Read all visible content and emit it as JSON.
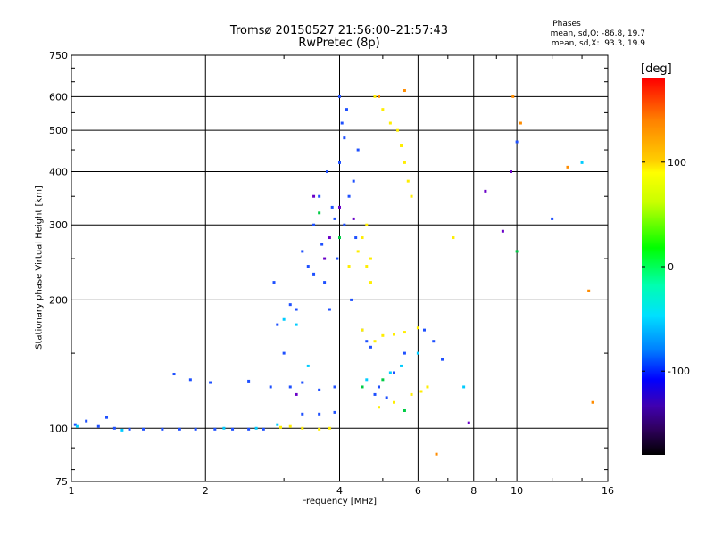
{
  "header": {
    "title_line1": "Tromsø 20150527 21:56:00–21:57:43",
    "title_line2": "RwPretec (8p)"
  },
  "phases": {
    "heading": "Phases",
    "o_line": "mean, sd,O: -86.8, 19.7",
    "x_line": "mean, sd,X:  93.3, 19.9"
  },
  "colorbar": {
    "title": "[deg]",
    "ticks": [
      {
        "label": "100",
        "value": 100
      },
      {
        "label": "0",
        "value": 0
      },
      {
        "label": "-100",
        "value": -100
      }
    ],
    "range": [
      -180,
      180
    ]
  },
  "chart_data": {
    "type": "scatter",
    "title": "Tromsø 20150527 21:56:00–21:57:43",
    "subtitle": "RwPretec (8p)",
    "xlabel": "Frequency [MHz]",
    "ylabel": "Stationary phase Virtual Height [km]",
    "x_scale": "log",
    "y_scale": "log",
    "xlim": [
      1,
      16
    ],
    "ylim": [
      75,
      750
    ],
    "x_ticks": [
      1,
      2,
      4,
      6,
      8,
      10,
      16
    ],
    "y_ticks": [
      75,
      100,
      200,
      300,
      400,
      500,
      600,
      750
    ],
    "x_grid": [
      2,
      4,
      6,
      8,
      10
    ],
    "y_grid": [
      100,
      200,
      300,
      400,
      500,
      600
    ],
    "grid": true,
    "color_scale": "phase [deg]",
    "series": [
      {
        "color": "#1e50ff",
        "points": [
          [
            1.02,
            102
          ],
          [
            1.08,
            104
          ],
          [
            1.15,
            101
          ],
          [
            1.25,
            100
          ],
          [
            1.35,
            99.5
          ],
          [
            1.45,
            99.5
          ],
          [
            1.6,
            99.5
          ],
          [
            1.75,
            99.5
          ],
          [
            1.9,
            99.5
          ],
          [
            2.1,
            99.5
          ],
          [
            2.3,
            99.5
          ],
          [
            2.5,
            99.5
          ],
          [
            2.7,
            99.5
          ],
          [
            1.2,
            106
          ],
          [
            1.7,
            134
          ],
          [
            1.85,
            130
          ],
          [
            2.05,
            128
          ],
          [
            2.5,
            129
          ],
          [
            2.8,
            125
          ],
          [
            3.1,
            125
          ],
          [
            3.3,
            128
          ],
          [
            3.6,
            123
          ],
          [
            3.9,
            125
          ],
          [
            3.3,
            108
          ],
          [
            3.6,
            108
          ],
          [
            3.9,
            109
          ],
          [
            2.85,
            220
          ],
          [
            2.9,
            175
          ],
          [
            3.0,
            150
          ],
          [
            3.1,
            195
          ],
          [
            3.2,
            190
          ],
          [
            3.3,
            260
          ],
          [
            3.4,
            240
          ],
          [
            3.5,
            230
          ],
          [
            3.5,
            300
          ],
          [
            3.6,
            350
          ],
          [
            3.65,
            270
          ],
          [
            3.7,
            220
          ],
          [
            3.75,
            400
          ],
          [
            3.8,
            190
          ],
          [
            3.85,
            330
          ],
          [
            3.9,
            310
          ],
          [
            3.95,
            250
          ],
          [
            4.0,
            420
          ],
          [
            4.0,
            600
          ],
          [
            4.05,
            520
          ],
          [
            4.1,
            480
          ],
          [
            4.1,
            300
          ],
          [
            4.15,
            560
          ],
          [
            4.2,
            350
          ],
          [
            4.25,
            200
          ],
          [
            4.3,
            380
          ],
          [
            4.35,
            280
          ],
          [
            4.4,
            450
          ],
          [
            4.5,
            170
          ],
          [
            4.6,
            160
          ],
          [
            4.7,
            155
          ],
          [
            4.8,
            120
          ],
          [
            4.9,
            125
          ],
          [
            5.1,
            118
          ],
          [
            5.3,
            135
          ],
          [
            5.6,
            150
          ],
          [
            6.2,
            170
          ],
          [
            6.5,
            160
          ],
          [
            6.8,
            145
          ],
          [
            10.0,
            470
          ],
          [
            12.0,
            310
          ]
        ]
      },
      {
        "color": "#00ccff",
        "points": [
          [
            1.03,
            101
          ],
          [
            1.3,
            99
          ],
          [
            2.2,
            100
          ],
          [
            2.6,
            100
          ],
          [
            2.9,
            102
          ],
          [
            3.0,
            180
          ],
          [
            3.2,
            175
          ],
          [
            3.4,
            140
          ],
          [
            4.6,
            130
          ],
          [
            5.2,
            135
          ],
          [
            5.5,
            140
          ],
          [
            6.0,
            150
          ],
          [
            7.6,
            125
          ],
          [
            14.0,
            420
          ]
        ]
      },
      {
        "color": "#ffee00",
        "points": [
          [
            2.95,
            100.5
          ],
          [
            3.1,
            101
          ],
          [
            3.3,
            100
          ],
          [
            3.6,
            99.5
          ],
          [
            3.8,
            100
          ],
          [
            4.2,
            240
          ],
          [
            4.4,
            260
          ],
          [
            4.5,
            280
          ],
          [
            4.6,
            300
          ],
          [
            4.7,
            250
          ],
          [
            4.8,
            600
          ],
          [
            5.0,
            560
          ],
          [
            5.2,
            520
          ],
          [
            5.4,
            500
          ],
          [
            5.5,
            460
          ],
          [
            5.6,
            420
          ],
          [
            5.7,
            380
          ],
          [
            5.8,
            350
          ],
          [
            4.5,
            170
          ],
          [
            4.8,
            160
          ],
          [
            5.0,
            165
          ],
          [
            5.3,
            166
          ],
          [
            5.6,
            168
          ],
          [
            6.0,
            172
          ],
          [
            4.6,
            240
          ],
          [
            4.7,
            220
          ],
          [
            5.8,
            120
          ],
          [
            6.1,
            122
          ],
          [
            6.3,
            125
          ],
          [
            5.3,
            115
          ],
          [
            4.9,
            112
          ],
          [
            7.2,
            280
          ]
        ]
      },
      {
        "color": "#ff8c00",
        "points": [
          [
            4.9,
            600
          ],
          [
            5.6,
            620
          ],
          [
            9.8,
            600
          ],
          [
            10.2,
            520
          ],
          [
            6.6,
            87
          ],
          [
            14.5,
            210
          ],
          [
            14.8,
            115
          ],
          [
            13.0,
            410
          ]
        ]
      },
      {
        "color": "#6a00c8",
        "points": [
          [
            3.5,
            350
          ],
          [
            3.8,
            280
          ],
          [
            4.0,
            330
          ],
          [
            4.3,
            310
          ],
          [
            3.2,
            120
          ],
          [
            3.7,
            250
          ],
          [
            7.8,
            103
          ],
          [
            9.3,
            290
          ],
          [
            9.7,
            400
          ],
          [
            8.5,
            360
          ]
        ]
      },
      {
        "color": "#00cc44",
        "points": [
          [
            3.6,
            320
          ],
          [
            4.0,
            280
          ],
          [
            4.5,
            125
          ],
          [
            5.0,
            130
          ],
          [
            5.6,
            110
          ],
          [
            10.0,
            260
          ]
        ]
      }
    ]
  }
}
